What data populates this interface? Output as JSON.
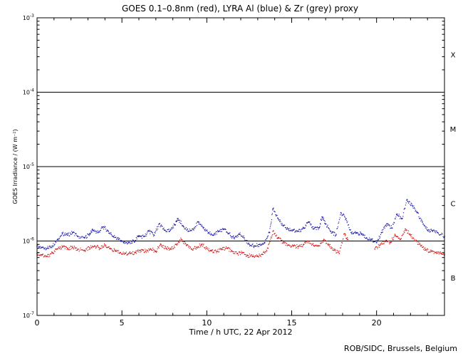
{
  "chart_data": {
    "type": "scatter",
    "title": "GOES 0.1–0.8nm (red), LYRA Al (blue) & Zr (grey) proxy",
    "xlabel": "Time / h UTC, 22 Apr 2012",
    "ylabel": "GOES Irradiance / (W m⁻²)",
    "xlim": [
      0,
      24
    ],
    "ylim": [
      1e-07,
      0.001
    ],
    "yscale": "log",
    "x_ticks": [
      0,
      5,
      10,
      15,
      20
    ],
    "y_ticks": [
      {
        "value": 1e-07,
        "base": "10",
        "exp": "-7"
      },
      {
        "value": 1e-06,
        "base": "10",
        "exp": "-6"
      },
      {
        "value": 1e-05,
        "base": "10",
        "exp": "-5"
      },
      {
        "value": 0.0001,
        "base": "10",
        "exp": "-4"
      },
      {
        "value": 0.001,
        "base": "10",
        "exp": "-3"
      }
    ],
    "reference_lines": [
      1e-06,
      1e-05,
      0.0001
    ],
    "flare_classes": [
      {
        "label": "B",
        "value": 3.2e-07
      },
      {
        "label": "C",
        "value": 3.2e-06
      },
      {
        "label": "M",
        "value": 3.2e-05
      },
      {
        "label": "X",
        "value": 0.00032
      }
    ],
    "series": [
      {
        "color": "#1a1aa8",
        "points": [
          [
            0.0,
            8.5e-07
          ],
          [
            0.3,
            8.2e-07
          ],
          [
            0.6,
            8e-07
          ],
          [
            0.9,
            8.6e-07
          ],
          [
            1.2,
            1.05e-06
          ],
          [
            1.5,
            1.25e-06
          ],
          [
            1.8,
            1.2e-06
          ],
          [
            2.1,
            1.3e-06
          ],
          [
            2.4,
            1.15e-06
          ],
          [
            2.8,
            1.1e-06
          ],
          [
            3.1,
            1.25e-06
          ],
          [
            3.3,
            1.4e-06
          ],
          [
            3.6,
            1.3e-06
          ],
          [
            3.9,
            1.55e-06
          ],
          [
            4.2,
            1.35e-06
          ],
          [
            4.5,
            1.15e-06
          ],
          [
            4.8,
            1.05e-06
          ],
          [
            5.1,
            9.5e-07
          ],
          [
            5.4,
            9.5e-07
          ],
          [
            5.7,
            1e-06
          ],
          [
            6.0,
            1.15e-06
          ],
          [
            6.3,
            1.15e-06
          ],
          [
            6.6,
            1.35e-06
          ],
          [
            6.9,
            1.2e-06
          ],
          [
            7.2,
            1.7e-06
          ],
          [
            7.5,
            1.4e-06
          ],
          [
            7.8,
            1.35e-06
          ],
          [
            8.1,
            1.65e-06
          ],
          [
            8.3,
            2e-06
          ],
          [
            8.6,
            1.6e-06
          ],
          [
            8.9,
            1.35e-06
          ],
          [
            9.2,
            1.45e-06
          ],
          [
            9.5,
            1.8e-06
          ],
          [
            9.8,
            1.5e-06
          ],
          [
            10.1,
            1.3e-06
          ],
          [
            10.4,
            1.2e-06
          ],
          [
            10.7,
            1.35e-06
          ],
          [
            11.0,
            1.45e-06
          ],
          [
            11.3,
            1.25e-06
          ],
          [
            11.6,
            1.1e-06
          ],
          [
            11.9,
            1.25e-06
          ],
          [
            12.2,
            1.1e-06
          ],
          [
            12.5,
            9e-07
          ],
          [
            12.8,
            8.5e-07
          ],
          [
            13.1,
            9e-07
          ],
          [
            13.4,
            9.5e-07
          ],
          [
            13.7,
            1.3e-06
          ],
          [
            13.9,
            2.7e-06
          ],
          [
            14.2,
            2e-06
          ],
          [
            14.5,
            1.6e-06
          ],
          [
            14.8,
            1.45e-06
          ],
          [
            15.1,
            1.4e-06
          ],
          [
            15.4,
            1.35e-06
          ],
          [
            15.7,
            1.5e-06
          ],
          [
            16.0,
            1.8e-06
          ],
          [
            16.3,
            1.45e-06
          ],
          [
            16.6,
            1.5e-06
          ],
          [
            16.8,
            2.1e-06
          ],
          [
            17.0,
            1.7e-06
          ],
          [
            17.3,
            1.35e-06
          ],
          [
            17.6,
            1.2e-06
          ],
          [
            17.9,
            2.4e-06
          ],
          [
            18.2,
            2e-06
          ],
          [
            18.5,
            1.3e-06
          ],
          [
            18.8,
            1.3e-06
          ],
          [
            19.1,
            1.25e-06
          ],
          [
            19.4,
            1.1e-06
          ],
          [
            19.7,
            1.05e-06
          ],
          [
            20.0,
            9.5e-07
          ],
          [
            20.3,
            1.3e-06
          ],
          [
            20.6,
            1.7e-06
          ],
          [
            20.9,
            1.5e-06
          ],
          [
            21.2,
            2.3e-06
          ],
          [
            21.5,
            2e-06
          ],
          [
            21.8,
            3.6e-06
          ],
          [
            22.1,
            3e-06
          ],
          [
            22.4,
            2.4e-06
          ],
          [
            22.7,
            1.8e-06
          ],
          [
            23.0,
            1.4e-06
          ],
          [
            23.3,
            1.35e-06
          ],
          [
            23.6,
            1.3e-06
          ],
          [
            24.0,
            1.15e-06
          ]
        ]
      },
      {
        "color": "#d01818",
        "points": [
          [
            0.0,
            6.8e-07
          ],
          [
            0.3,
            6.5e-07
          ],
          [
            0.6,
            6.2e-07
          ],
          [
            0.9,
            7e-07
          ],
          [
            1.2,
            7.8e-07
          ],
          [
            1.5,
            8.3e-07
          ],
          [
            1.8,
            8e-07
          ],
          [
            2.1,
            8.2e-07
          ],
          [
            2.4,
            7.7e-07
          ],
          [
            2.8,
            7.5e-07
          ],
          [
            3.1,
            8.1e-07
          ],
          [
            3.4,
            8.6e-07
          ],
          [
            3.7,
            8e-07
          ],
          [
            4.0,
            8.8e-07
          ],
          [
            4.3,
            8e-07
          ],
          [
            4.6,
            7.4e-07
          ],
          [
            4.9,
            7e-07
          ],
          [
            5.2,
            6.8e-07
          ],
          [
            5.5,
            6.8e-07
          ],
          [
            5.8,
            7e-07
          ],
          [
            6.1,
            7.5e-07
          ],
          [
            6.4,
            7.3e-07
          ],
          [
            6.7,
            7.8e-07
          ],
          [
            7.0,
            7.3e-07
          ],
          [
            7.3,
            9e-07
          ],
          [
            7.6,
            8e-07
          ],
          [
            7.9,
            7.8e-07
          ],
          [
            8.2,
            9e-07
          ],
          [
            8.5,
            1.05e-06
          ],
          [
            8.8,
            8.7e-07
          ],
          [
            9.1,
            7.8e-07
          ],
          [
            9.4,
            8.2e-07
          ],
          [
            9.7,
            9e-07
          ],
          [
            10.0,
            8e-07
          ],
          [
            10.3,
            7.4e-07
          ],
          [
            10.6,
            7.2e-07
          ],
          [
            10.9,
            7.8e-07
          ],
          [
            11.2,
            8e-07
          ],
          [
            11.5,
            7.2e-07
          ],
          [
            11.8,
            6.8e-07
          ],
          [
            12.1,
            7e-07
          ],
          [
            12.4,
            6.4e-07
          ],
          [
            12.7,
            6.2e-07
          ],
          [
            13.0,
            6.3e-07
          ],
          [
            13.3,
            6.6e-07
          ],
          [
            13.6,
            8e-07
          ],
          [
            13.9,
            1.35e-06
          ],
          [
            14.2,
            1.1e-06
          ],
          [
            14.5,
            9.5e-07
          ],
          [
            14.8,
            8.8e-07
          ],
          [
            15.1,
            8.5e-07
          ],
          [
            15.4,
            8.4e-07
          ],
          [
            15.7,
            9e-07
          ],
          [
            16.0,
            1e-06
          ],
          [
            16.3,
            8.7e-07
          ],
          [
            16.6,
            8.6e-07
          ],
          [
            16.9,
            1.05e-06
          ],
          [
            17.2,
            8.8e-07
          ],
          [
            17.5,
            7.5e-07
          ],
          [
            17.8,
            6.8e-07
          ],
          [
            18.1,
            1.25e-06
          ],
          [
            18.3,
            1.05e-06
          ]
        ]
      },
      {
        "color": "#d01818",
        "points": [
          [
            19.9,
            7.8e-07
          ],
          [
            20.2,
            8.8e-07
          ],
          [
            20.5,
            1e-06
          ],
          [
            20.8,
            9.5e-07
          ],
          [
            21.1,
            1.2e-06
          ],
          [
            21.4,
            1.05e-06
          ],
          [
            21.7,
            1.45e-06
          ],
          [
            22.0,
            1.2e-06
          ],
          [
            22.3,
            1e-06
          ],
          [
            22.6,
            8.6e-07
          ],
          [
            22.9,
            7.6e-07
          ],
          [
            23.2,
            7.2e-07
          ],
          [
            23.5,
            7e-07
          ],
          [
            23.8,
            6.8e-07
          ],
          [
            24.0,
            6.6e-07
          ]
        ]
      }
    ]
  },
  "footer": "ROB/SIDC, Brussels, Belgium"
}
